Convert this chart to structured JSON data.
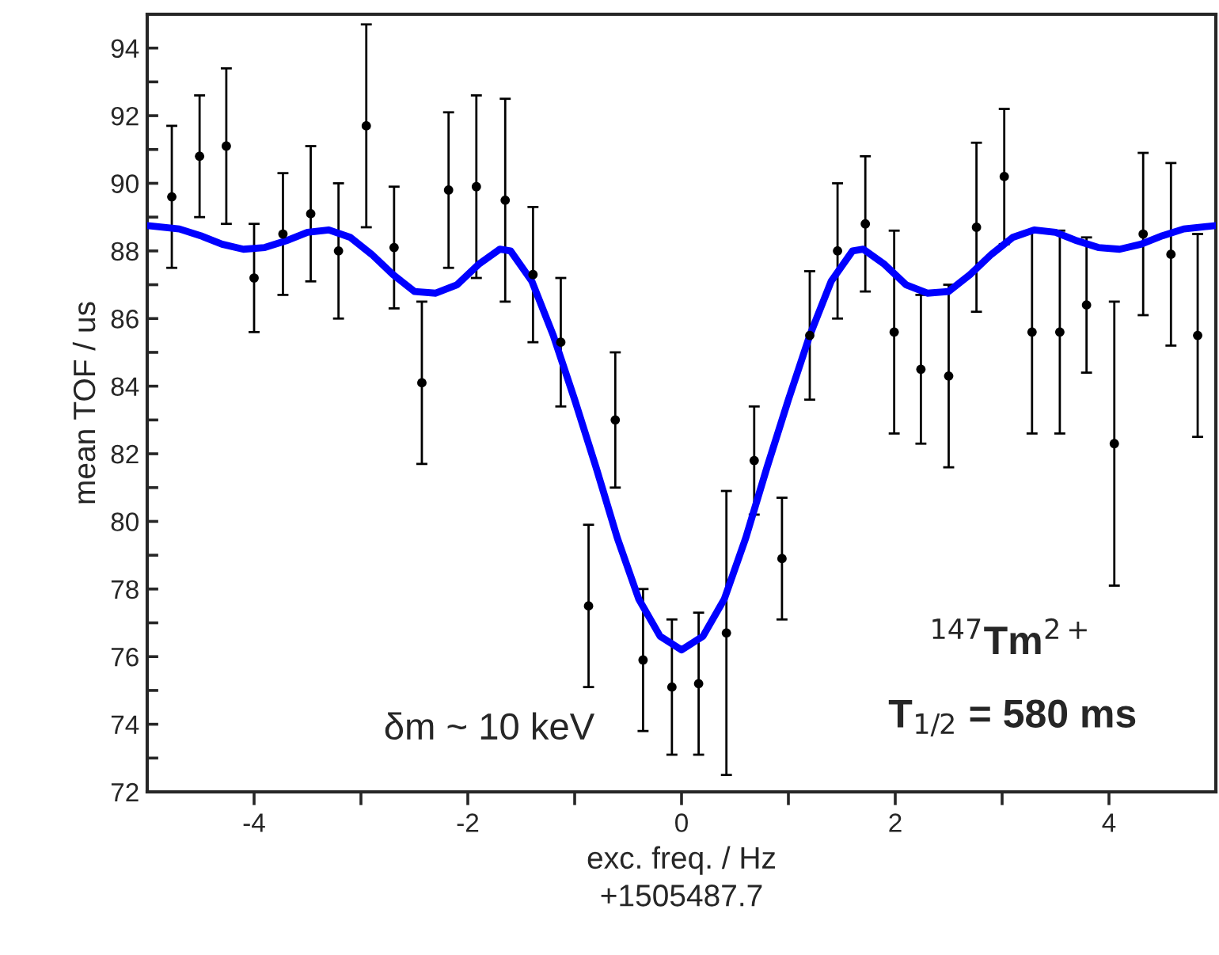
{
  "chart_data": {
    "type": "scatter",
    "xlabel": "exc. freq. / Hz\n+1505487.7",
    "ylabel": "mean TOF / us",
    "xlim": [
      -5,
      5
    ],
    "ylim": [
      72,
      95
    ],
    "xticks": [
      -4,
      -2,
      0,
      2,
      4,
      {
        "value": -3,
        "label": null
      },
      {
        "value": -1,
        "label": null
      },
      {
        "value": 1,
        "label": null
      },
      {
        "value": 3,
        "label": null
      }
    ],
    "yticks": [
      72,
      74,
      76,
      78,
      80,
      82,
      84,
      86,
      88,
      90,
      92,
      94,
      {
        "value": 73,
        "label": null
      },
      {
        "value": 75,
        "label": null
      },
      {
        "value": 77,
        "label": null
      },
      {
        "value": 79,
        "label": null
      },
      {
        "value": 81,
        "label": null
      },
      {
        "value": 83,
        "label": null
      },
      {
        "value": 85,
        "label": null
      },
      {
        "value": 87,
        "label": null
      },
      {
        "value": 89,
        "label": null
      },
      {
        "value": 91,
        "label": null
      },
      {
        "value": 93,
        "label": null
      }
    ],
    "grid": false,
    "legend": false,
    "annotations": [
      "δm ~ 10 keV",
      "$^{147}$Tm$^{2+}$",
      "T$_{1/2}$ = 580 ms"
    ],
    "series": [
      {
        "color": "#000000",
        "marker": "circle",
        "x": [
          -4.77,
          -4.51,
          -4.26,
          -4.0,
          -3.73,
          -3.47,
          -3.21,
          -2.95,
          -2.69,
          -2.43,
          -2.18,
          -1.92,
          -1.65,
          -1.39,
          -1.13,
          -0.87,
          -0.62,
          -0.36,
          -0.09,
          0.16,
          0.42,
          0.68,
          0.94,
          1.2,
          1.46,
          1.72,
          1.99,
          2.24,
          2.5,
          2.76,
          3.02,
          3.28,
          3.54,
          3.79,
          4.05,
          4.32,
          4.58,
          4.83
        ],
        "values": [
          89.6,
          90.8,
          91.1,
          87.2,
          88.5,
          89.1,
          88.0,
          91.7,
          88.1,
          84.1,
          89.8,
          89.9,
          89.5,
          87.3,
          85.3,
          77.5,
          83.0,
          75.9,
          75.1,
          75.2,
          76.7,
          81.8,
          78.9,
          85.5,
          88.0,
          88.8,
          85.6,
          84.5,
          84.3,
          88.7,
          90.2,
          85.6,
          85.6,
          86.4,
          82.3,
          88.5,
          87.9,
          85.5
        ],
        "errors": [
          2.1,
          1.8,
          2.3,
          1.6,
          1.8,
          2.0,
          2.0,
          3.0,
          1.8,
          2.4,
          2.3,
          2.7,
          3.0,
          2.0,
          1.9,
          2.4,
          2.0,
          2.1,
          2.0,
          2.1,
          4.2,
          1.6,
          1.8,
          1.9,
          2.0,
          2.0,
          3.0,
          2.2,
          2.7,
          2.5,
          2.0,
          3.0,
          3.0,
          2.0,
          4.2,
          2.4,
          2.7,
          3.0
        ]
      },
      {
        "type": "line",
        "color": "#0000ff",
        "marker": "none",
        "line_style": "solid",
        "x": [
          -5.0,
          -4.7,
          -4.5,
          -4.3,
          -4.1,
          -3.9,
          -3.7,
          -3.5,
          -3.3,
          -3.1,
          -2.9,
          -2.7,
          -2.5,
          -2.3,
          -2.1,
          -1.9,
          -1.7,
          -1.6,
          -1.4,
          -1.2,
          -1.0,
          -0.8,
          -0.6,
          -0.4,
          -0.2,
          0.0,
          0.2,
          0.4,
          0.6,
          0.8,
          1.0,
          1.2,
          1.4,
          1.6,
          1.7,
          1.9,
          2.1,
          2.3,
          2.5,
          2.7,
          2.9,
          3.1,
          3.3,
          3.5,
          3.7,
          3.9,
          4.1,
          4.3,
          4.5,
          4.7,
          5.0
        ],
        "values": [
          88.75,
          88.65,
          88.45,
          88.2,
          88.05,
          88.1,
          88.3,
          88.55,
          88.62,
          88.4,
          87.9,
          87.3,
          86.8,
          86.75,
          87.0,
          87.6,
          88.05,
          88.0,
          87.1,
          85.5,
          83.6,
          81.6,
          79.5,
          77.7,
          76.6,
          76.2,
          76.6,
          77.7,
          79.5,
          81.6,
          83.6,
          85.5,
          87.1,
          88.0,
          88.05,
          87.6,
          87.0,
          86.75,
          86.8,
          87.3,
          87.9,
          88.4,
          88.62,
          88.55,
          88.3,
          88.1,
          88.05,
          88.2,
          88.45,
          88.65,
          88.75
        ]
      }
    ]
  }
}
